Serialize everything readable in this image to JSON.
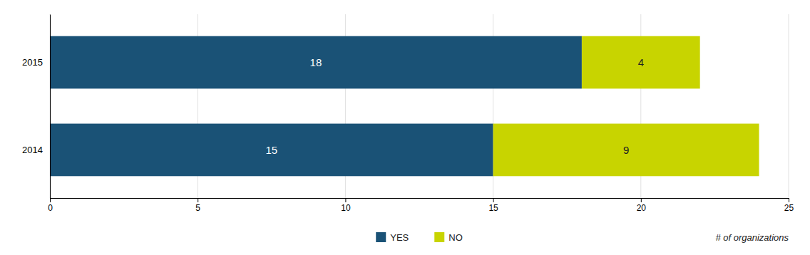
{
  "chart_data": {
    "type": "bar",
    "orientation": "horizontal",
    "stacked": true,
    "categories": [
      "2015",
      "2014"
    ],
    "series": [
      {
        "name": "YES",
        "color": "#1a5276",
        "values": [
          18,
          15
        ]
      },
      {
        "name": "NO",
        "color": "#c8d400",
        "values": [
          4,
          9
        ]
      }
    ],
    "xlim": [
      0,
      25
    ],
    "xticks": [
      0,
      5,
      10,
      15,
      20,
      25
    ],
    "grid": true,
    "data_labels": true,
    "legend": "bottom",
    "annotations": [
      "# of organizations"
    ]
  }
}
